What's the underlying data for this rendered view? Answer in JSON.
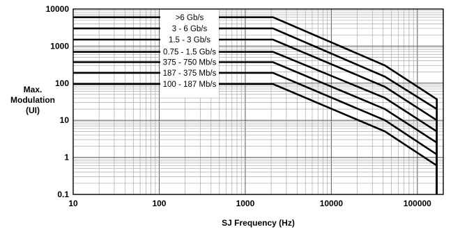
{
  "chart_data": {
    "type": "line",
    "title": "",
    "xlabel": "SJ Frequency (Hz)",
    "ylabel": [
      "Max.",
      "Modulation",
      "(UI)"
    ],
    "x_scale": "log",
    "y_scale": "log",
    "xlim": [
      10,
      200000
    ],
    "ylim": [
      0.1,
      10000
    ],
    "x_ticks": [
      "10",
      "100",
      "1000",
      "10000",
      "100000"
    ],
    "y_ticks": [
      "0.1",
      "1",
      "10",
      "100",
      "1000",
      "10000"
    ],
    "grid": true,
    "legend_placement": "top-center",
    "series": [
      {
        "name": ">6 Gb/s",
        "points": [
          [
            10,
            6000
          ],
          [
            2100,
            6000
          ],
          [
            42000,
            300
          ],
          [
            168000,
            37
          ],
          [
            168000,
            0.1
          ]
        ]
      },
      {
        "name": "3 - 6 Gb/s",
        "points": [
          [
            10,
            3000
          ],
          [
            2100,
            3000
          ],
          [
            42000,
            150
          ],
          [
            168000,
            20
          ],
          [
            168000,
            0.1
          ]
        ]
      },
      {
        "name": "1.5 - 3 Gb/s",
        "points": [
          [
            10,
            1500
          ],
          [
            2100,
            1500
          ],
          [
            42000,
            80
          ],
          [
            168000,
            10
          ],
          [
            168000,
            0.1
          ]
        ]
      },
      {
        "name": "0.75 - 1.5 Gb/s",
        "points": [
          [
            10,
            700
          ],
          [
            2100,
            700
          ],
          [
            42000,
            40
          ],
          [
            168000,
            5
          ],
          [
            168000,
            0.1
          ]
        ]
      },
      {
        "name": "375 - 750 Mb/s",
        "points": [
          [
            10,
            370
          ],
          [
            2100,
            370
          ],
          [
            42000,
            20
          ],
          [
            168000,
            2.5
          ],
          [
            168000,
            0.1
          ]
        ]
      },
      {
        "name": "187 - 375 Mb/s",
        "points": [
          [
            10,
            190
          ],
          [
            2100,
            190
          ],
          [
            42000,
            10
          ],
          [
            168000,
            1.2
          ],
          [
            168000,
            0.1
          ]
        ]
      },
      {
        "name": "100 - 187 Mb/s",
        "points": [
          [
            10,
            95
          ],
          [
            2100,
            95
          ],
          [
            42000,
            5
          ],
          [
            168000,
            0.6
          ],
          [
            168000,
            0.1
          ]
        ]
      }
    ]
  }
}
